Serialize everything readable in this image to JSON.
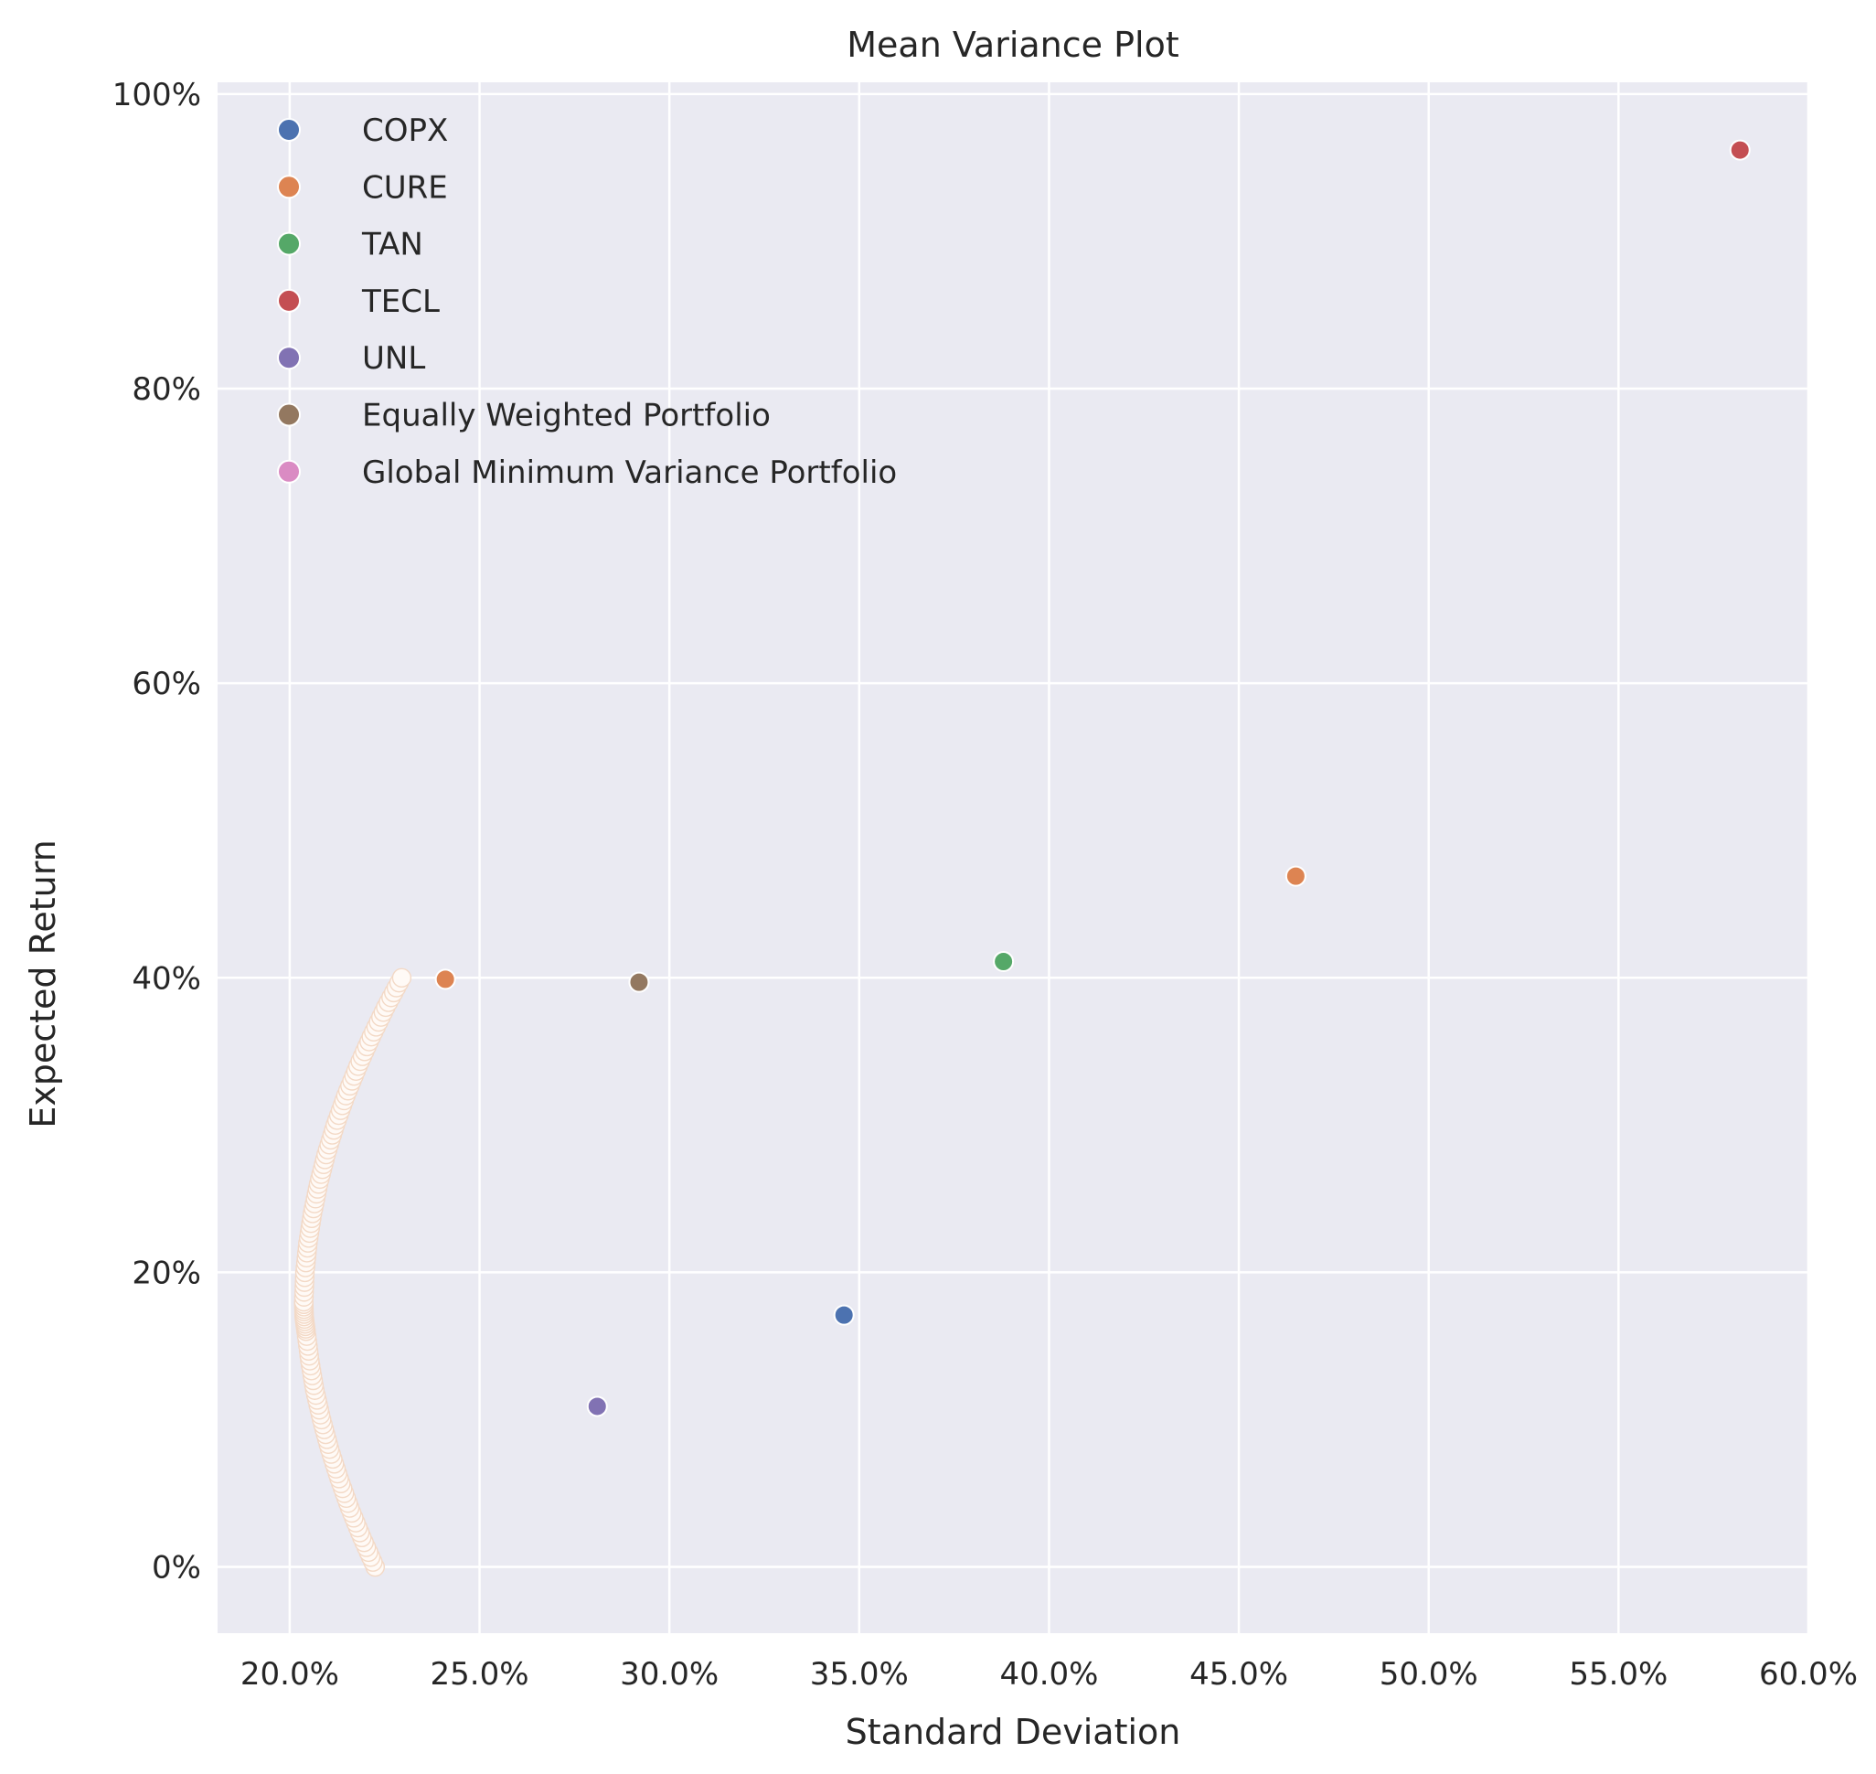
{
  "chart_data": {
    "type": "scatter",
    "title": "Mean Variance Plot",
    "xlabel": "Standard Deviation",
    "ylabel": "Expected Return",
    "xlim": [
      0.181,
      0.6
    ],
    "ylim": [
      -0.045,
      1.008
    ],
    "x_ticks": [
      0.2,
      0.25,
      0.3,
      0.35,
      0.4,
      0.45,
      0.5,
      0.55,
      0.6
    ],
    "x_tick_labels": [
      "20.0%",
      "25.0%",
      "30.0%",
      "35.0%",
      "40.0%",
      "45.0%",
      "50.0%",
      "55.0%",
      "60.0%"
    ],
    "y_ticks": [
      0.0,
      0.2,
      0.4,
      0.6,
      0.8,
      1.0
    ],
    "y_tick_labels": [
      "0%",
      "20%",
      "40%",
      "60%",
      "80%",
      "100%"
    ],
    "grid": true,
    "legend_position": "top-left",
    "background_color": "#eaeaf2",
    "grid_color": "#ffffff",
    "series": [
      {
        "name": "COPX",
        "color": "#4c72b0",
        "points": [
          [
            0.346,
            0.171
          ]
        ]
      },
      {
        "name": "CURE",
        "color": "#dd8452",
        "points": [
          [
            0.465,
            0.469
          ]
        ]
      },
      {
        "name": "TAN",
        "color": "#55a868",
        "points": [
          [
            0.388,
            0.411
          ]
        ]
      },
      {
        "name": "TECL",
        "color": "#c44e52",
        "points": [
          [
            0.582,
            0.962
          ]
        ]
      },
      {
        "name": "UNL",
        "color": "#8172b3",
        "points": [
          [
            0.281,
            0.109
          ]
        ]
      },
      {
        "name": "Equally Weighted Portfolio",
        "color": "#937860",
        "points": [
          [
            0.292,
            0.397
          ]
        ]
      },
      {
        "name": "Global Minimum Variance Portfolio",
        "color": "#da8bc3",
        "points": [
          [
            0.241,
            0.399
          ]
        ]
      }
    ],
    "efficient_frontier": {
      "color": "#dd8452",
      "points": [
        [
          0.2225,
          0.0
        ],
        [
          0.219,
          0.02
        ],
        [
          0.2158,
          0.04
        ],
        [
          0.213,
          0.06
        ],
        [
          0.2105,
          0.08
        ],
        [
          0.2084,
          0.1
        ],
        [
          0.2066,
          0.12
        ],
        [
          0.2053,
          0.14
        ],
        [
          0.2043,
          0.16
        ],
        [
          0.2038,
          0.17
        ],
        [
          0.2037,
          0.18
        ],
        [
          0.204,
          0.2
        ],
        [
          0.2048,
          0.22
        ],
        [
          0.206,
          0.24
        ],
        [
          0.2076,
          0.26
        ],
        [
          0.2096,
          0.28
        ],
        [
          0.212,
          0.3
        ],
        [
          0.2148,
          0.32
        ],
        [
          0.218,
          0.34
        ],
        [
          0.2215,
          0.36
        ],
        [
          0.2253,
          0.38
        ],
        [
          0.2295,
          0.4
        ]
      ]
    }
  }
}
